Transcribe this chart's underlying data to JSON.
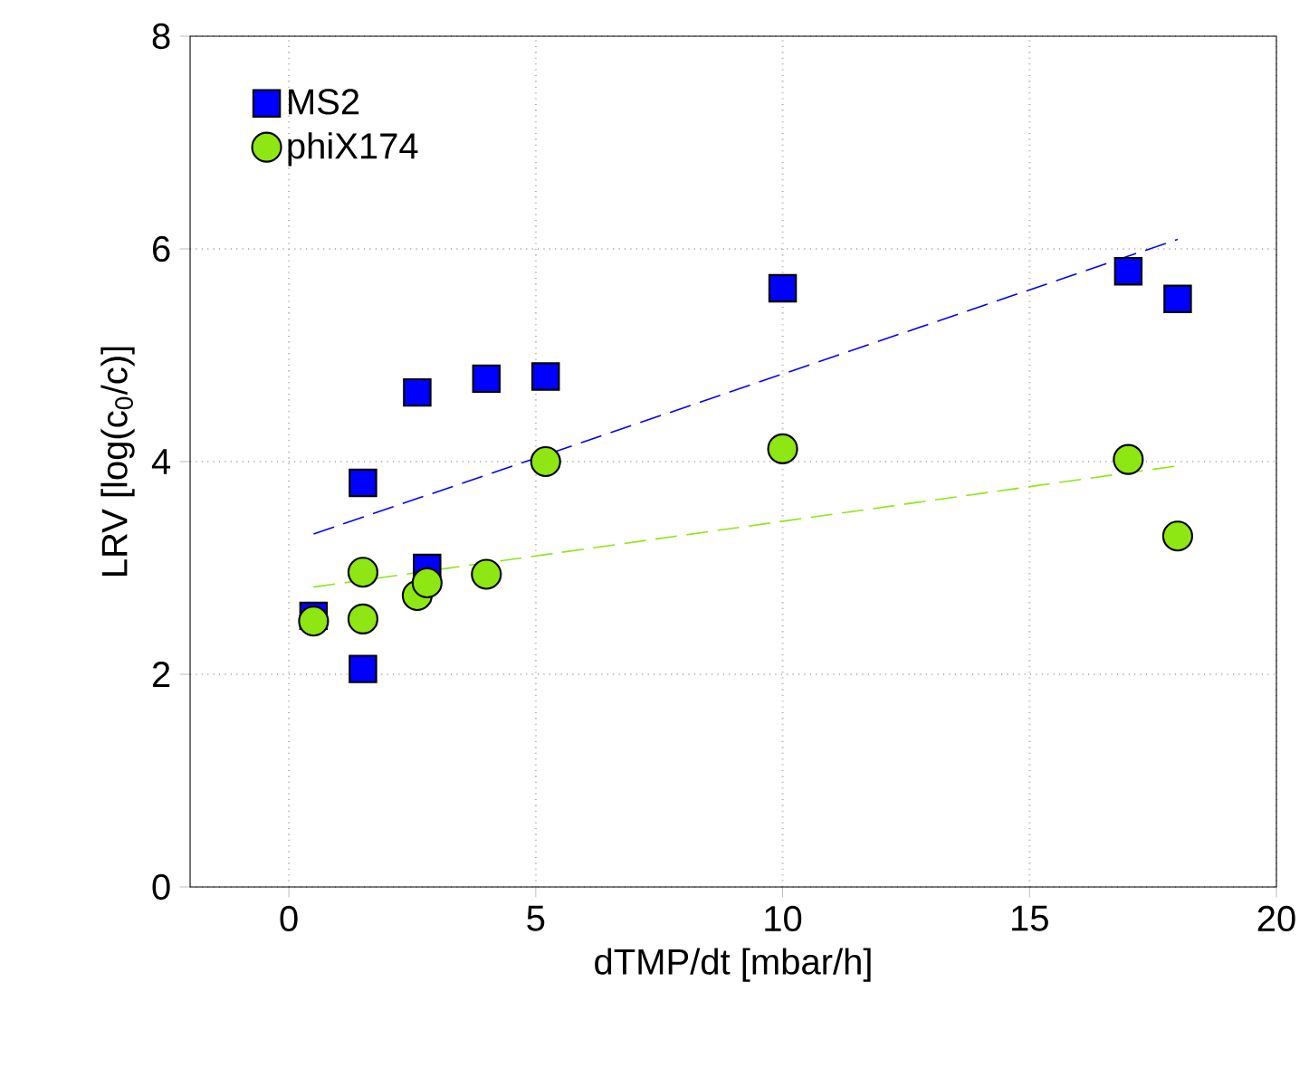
{
  "chart_data": {
    "type": "scatter",
    "xlabel": "dTMP/dt [mbar/h]",
    "ylabel": "LRV [log(c$_{0}$/c)]",
    "xlim": [
      -2,
      20
    ],
    "xticks": [
      0,
      5,
      10,
      15,
      20
    ],
    "ylim": [
      0,
      8
    ],
    "yticks": [
      0,
      2,
      4,
      6,
      8
    ],
    "grid": true,
    "legend": "top left",
    "series": [
      {
        "name": "MS2",
        "color": "#0000ff",
        "marker": "square",
        "x": [
          0.5,
          1.5,
          1.5,
          2.6,
          2.8,
          4.0,
          5.2,
          10,
          17,
          18
        ],
        "values": [
          2.55,
          3.8,
          2.05,
          4.65,
          3.0,
          4.78,
          4.8,
          5.63,
          5.79,
          5.53
        ]
      },
      {
        "name": "phiX174",
        "color": "#8ee612",
        "marker": "circle",
        "x": [
          0.5,
          1.5,
          1.5,
          2.6,
          2.8,
          4.0,
          5.2,
          10,
          17,
          18
        ],
        "values": [
          2.5,
          2.96,
          2.52,
          2.74,
          2.86,
          2.94,
          4.0,
          4.12,
          4.02,
          3.3
        ]
      },
      {
        "type": "line",
        "color": "#0000ff",
        "marker": "none",
        "line_style": "dashed",
        "x": [
          0.5,
          18
        ],
        "values": [
          3.32,
          6.09
        ]
      },
      {
        "type": "line",
        "color": "#8ee612",
        "marker": "none",
        "line_style": "dashed",
        "x": [
          0.5,
          18
        ],
        "values": [
          2.82,
          3.96
        ]
      }
    ]
  }
}
